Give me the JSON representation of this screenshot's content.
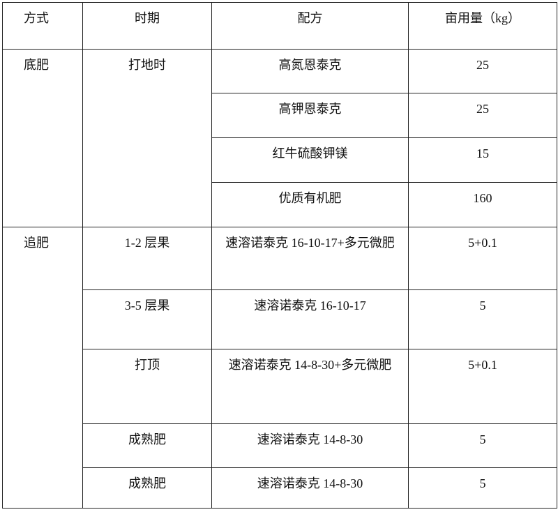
{
  "header": {
    "method": "方式",
    "period": "时期",
    "formula": "配方",
    "amount": "亩用量（kg）"
  },
  "groups": [
    {
      "method": "底肥",
      "rows": [
        {
          "period": "打地时",
          "formula": "高氮恩泰克",
          "amount": "25"
        },
        {
          "period": "",
          "formula": "高钾恩泰克",
          "amount": "25"
        },
        {
          "period": "",
          "formula": "红牛硫酸钾镁",
          "amount": "15"
        },
        {
          "period": "",
          "formula": "优质有机肥",
          "amount": "160"
        }
      ]
    },
    {
      "method": "追肥",
      "rows": [
        {
          "period": "1-2 层果",
          "formula": "速溶诺泰克 16-10-17+多元微肥",
          "amount": "5+0.1"
        },
        {
          "period": "3-5 层果",
          "formula": "速溶诺泰克 16-10-17",
          "amount": "5"
        },
        {
          "period": "打顶",
          "formula": "速溶诺泰克 14-8-30+多元微肥",
          "amount": "5+0.1"
        },
        {
          "period": "成熟肥",
          "formula": "速溶诺泰克 14-8-30",
          "amount": "5"
        },
        {
          "period": "成熟肥",
          "formula": "速溶诺泰克 14-8-30",
          "amount": "5"
        }
      ]
    }
  ]
}
